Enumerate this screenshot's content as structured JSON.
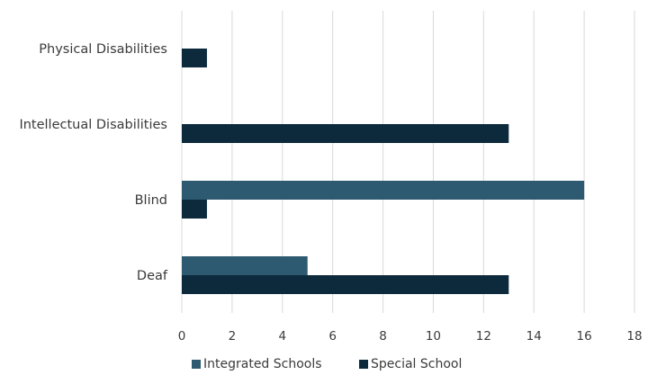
{
  "chart_data": {
    "type": "bar",
    "orientation": "horizontal",
    "categories": [
      "Physical Disabilities",
      "Intellectual Disabilities",
      "Blind",
      "Deaf"
    ],
    "series": [
      {
        "name": "Integrated Schools",
        "values": [
          0,
          0,
          16,
          5
        ],
        "color": "#2d5a70"
      },
      {
        "name": "Special School",
        "values": [
          1,
          13,
          1,
          13
        ],
        "color": "#0c2a3c"
      }
    ],
    "xlim": [
      0,
      18
    ],
    "xticks": [
      "0",
      "2",
      "4",
      "6",
      "8",
      "10",
      "12",
      "14",
      "16",
      "18"
    ],
    "grid": true,
    "legend_position": "bottom"
  }
}
